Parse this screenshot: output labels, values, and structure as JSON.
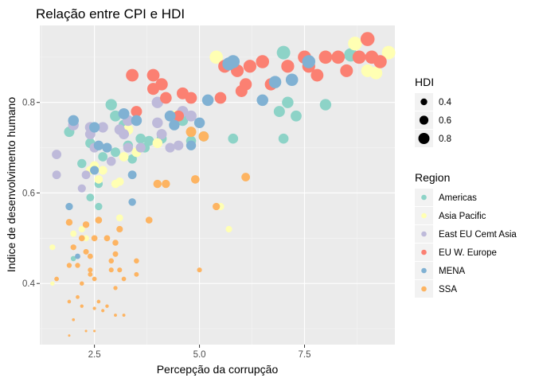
{
  "chart_data": {
    "type": "scatter",
    "title": "Relação entre CPI e HDI",
    "xlabel": "Percepção da corrupção",
    "ylabel": "Indice de desenvolvimento humano",
    "xlim": [
      1.2,
      9.65
    ],
    "ylim": [
      0.265,
      0.97
    ],
    "xticks": [
      2.5,
      5.0,
      7.5
    ],
    "xtick_labels": [
      "2.5",
      "5.0",
      "7.5"
    ],
    "yticks": [
      0.4,
      0.6,
      0.8
    ],
    "ytick_labels": [
      "0.4",
      "0.6",
      "0.8"
    ],
    "grid": true,
    "legend_position": "right",
    "size_legend": {
      "title": "HDI",
      "values": [
        0.4,
        0.6,
        0.8
      ],
      "labels": [
        "0.4",
        "0.6",
        "0.8"
      ]
    },
    "color_legend": {
      "title": "Region",
      "entries": [
        {
          "name": "Americas",
          "color": "#8DD3C7"
        },
        {
          "name": "Asia Pacific",
          "color": "#FFFFB3"
        },
        {
          "name": "East EU Cemt Asia",
          "color": "#BEBADA"
        },
        {
          "name": "EU W. Europe",
          "color": "#FB8072"
        },
        {
          "name": "MENA",
          "color": "#80B1D3"
        },
        {
          "name": "SSA",
          "color": "#FDB462"
        }
      ]
    },
    "series": [
      {
        "name": "Americas",
        "color": "#8DD3C7",
        "points": [
          [
            1.9,
            0.735
          ],
          [
            2.2,
            0.665
          ],
          [
            2.4,
            0.71
          ],
          [
            2.4,
            0.59
          ],
          [
            2.6,
            0.57
          ],
          [
            2.9,
            0.795
          ],
          [
            3.0,
            0.69
          ],
          [
            3.0,
            0.77
          ],
          [
            3.2,
            0.75
          ],
          [
            3.3,
            0.705
          ],
          [
            3.4,
            0.675
          ],
          [
            3.6,
            0.72
          ],
          [
            2.0,
            0.455
          ],
          [
            2.6,
            0.62
          ],
          [
            2.7,
            0.68
          ],
          [
            3.8,
            0.715
          ],
          [
            4.1,
            0.72
          ],
          [
            4.6,
            0.76
          ],
          [
            4.8,
            0.715
          ],
          [
            5.1,
            0.725
          ],
          [
            5.8,
            0.72
          ],
          [
            6.9,
            0.78
          ],
          [
            7.0,
            0.72
          ],
          [
            7.0,
            0.91
          ],
          [
            7.1,
            0.8
          ],
          [
            7.3,
            0.77
          ],
          [
            8.0,
            0.795
          ],
          [
            8.6,
            0.905
          ],
          [
            3.7,
            0.7
          ]
        ]
      },
      {
        "name": "Asia Pacific",
        "color": "#FFFFB3",
        "points": [
          [
            1.5,
            0.48
          ],
          [
            1.5,
            0.4
          ],
          [
            2.0,
            0.51
          ],
          [
            2.2,
            0.52
          ],
          [
            2.3,
            0.5
          ],
          [
            2.4,
            0.65
          ],
          [
            2.5,
            0.66
          ],
          [
            2.6,
            0.63
          ],
          [
            2.7,
            0.65
          ],
          [
            3.0,
            0.62
          ],
          [
            3.1,
            0.545
          ],
          [
            3.1,
            0.625
          ],
          [
            3.2,
            0.68
          ],
          [
            3.5,
            0.69
          ],
          [
            3.3,
            0.74
          ],
          [
            4.0,
            0.71
          ],
          [
            4.4,
            0.77
          ],
          [
            5.4,
            0.9
          ],
          [
            5.5,
            0.57
          ],
          [
            5.7,
            0.52
          ],
          [
            8.0,
            0.9
          ],
          [
            8.7,
            0.93
          ],
          [
            9.0,
            0.87
          ],
          [
            9.2,
            0.865
          ],
          [
            9.5,
            0.91
          ]
        ]
      },
      {
        "name": "East EU Cemt Asia",
        "color": "#BEBADA",
        "points": [
          [
            1.6,
            0.685
          ],
          [
            1.6,
            0.64
          ],
          [
            2.0,
            0.75
          ],
          [
            2.3,
            0.64
          ],
          [
            2.2,
            0.61
          ],
          [
            2.5,
            0.7
          ],
          [
            2.4,
            0.73
          ],
          [
            2.7,
            0.745
          ],
          [
            2.9,
            0.67
          ],
          [
            3.1,
            0.74
          ],
          [
            3.3,
            0.7
          ],
          [
            3.3,
            0.76
          ],
          [
            3.6,
            0.7
          ],
          [
            4.0,
            0.755
          ],
          [
            4.1,
            0.73
          ],
          [
            4.3,
            0.7
          ],
          [
            4.5,
            0.705
          ],
          [
            4.6,
            0.78
          ],
          [
            4.8,
            0.77
          ],
          [
            4.0,
            0.8
          ],
          [
            2.4,
            0.745
          ],
          [
            3.2,
            0.73
          ]
        ]
      },
      {
        "name": "EU W. Europe",
        "color": "#FB8072",
        "points": [
          [
            3.4,
            0.86
          ],
          [
            3.5,
            0.78
          ],
          [
            3.9,
            0.86
          ],
          [
            4.1,
            0.84
          ],
          [
            4.2,
            0.81
          ],
          [
            4.5,
            0.77
          ],
          [
            4.6,
            0.82
          ],
          [
            4.8,
            0.81
          ],
          [
            5.5,
            0.81
          ],
          [
            5.6,
            0.88
          ],
          [
            5.9,
            0.87
          ],
          [
            6.1,
            0.84
          ],
          [
            6.2,
            0.88
          ],
          [
            6.5,
            0.89
          ],
          [
            6.7,
            0.84
          ],
          [
            7.1,
            0.88
          ],
          [
            7.5,
            0.9
          ],
          [
            7.6,
            0.88
          ],
          [
            7.8,
            0.86
          ],
          [
            8.0,
            0.9
          ],
          [
            8.3,
            0.9
          ],
          [
            8.5,
            0.87
          ],
          [
            8.8,
            0.9
          ],
          [
            9.0,
            0.94
          ],
          [
            9.1,
            0.9
          ],
          [
            9.3,
            0.89
          ],
          [
            6.0,
            0.825
          ],
          [
            3.9,
            0.83
          ]
        ]
      },
      {
        "name": "MENA",
        "color": "#80B1D3",
        "points": [
          [
            1.9,
            0.57
          ],
          [
            2.0,
            0.76
          ],
          [
            2.1,
            0.46
          ],
          [
            2.5,
            0.745
          ],
          [
            2.6,
            0.705
          ],
          [
            2.5,
            0.65
          ],
          [
            2.8,
            0.7
          ],
          [
            3.2,
            0.775
          ],
          [
            3.4,
            0.64
          ],
          [
            3.4,
            0.58
          ],
          [
            3.5,
            0.76
          ],
          [
            4.3,
            0.77
          ],
          [
            4.4,
            0.75
          ],
          [
            4.8,
            0.705
          ],
          [
            5.0,
            0.755
          ],
          [
            5.2,
            0.805
          ],
          [
            5.8,
            0.89
          ],
          [
            6.5,
            0.805
          ],
          [
            6.8,
            0.845
          ],
          [
            7.2,
            0.85
          ],
          [
            7.6,
            0.89
          ],
          [
            5.7,
            0.885
          ]
        ]
      },
      {
        "name": "SSA",
        "color": "#FDB462",
        "points": [
          [
            1.6,
            0.41
          ],
          [
            1.9,
            0.535
          ],
          [
            1.9,
            0.44
          ],
          [
            1.9,
            0.36
          ],
          [
            2.0,
            0.48
          ],
          [
            2.0,
            0.32
          ],
          [
            2.1,
            0.44
          ],
          [
            2.1,
            0.37
          ],
          [
            2.2,
            0.5
          ],
          [
            2.2,
            0.4
          ],
          [
            2.2,
            0.35
          ],
          [
            2.3,
            0.47
          ],
          [
            2.3,
            0.53
          ],
          [
            2.3,
            0.295
          ],
          [
            2.4,
            0.46
          ],
          [
            2.4,
            0.43
          ],
          [
            2.4,
            0.42
          ],
          [
            2.5,
            0.41
          ],
          [
            2.5,
            0.345
          ],
          [
            2.5,
            0.5
          ],
          [
            2.5,
            0.295
          ],
          [
            2.6,
            0.36
          ],
          [
            2.7,
            0.34
          ],
          [
            2.8,
            0.35
          ],
          [
            2.8,
            0.5
          ],
          [
            2.9,
            0.45
          ],
          [
            2.9,
            0.43
          ],
          [
            3.0,
            0.33
          ],
          [
            3.0,
            0.39
          ],
          [
            3.0,
            0.49
          ],
          [
            3.0,
            0.465
          ],
          [
            3.1,
            0.52
          ],
          [
            3.1,
            0.43
          ],
          [
            3.2,
            0.41
          ],
          [
            3.2,
            0.33
          ],
          [
            3.5,
            0.45
          ],
          [
            3.5,
            0.42
          ],
          [
            3.8,
            0.54
          ],
          [
            4.0,
            0.62
          ],
          [
            4.2,
            0.62
          ],
          [
            4.9,
            0.63
          ],
          [
            5.0,
            0.43
          ],
          [
            5.1,
            0.725
          ],
          [
            5.4,
            0.57
          ],
          [
            6.1,
            0.635
          ],
          [
            4.8,
            0.735
          ],
          [
            2.6,
            0.54
          ],
          [
            1.9,
            0.285
          ]
        ]
      }
    ]
  }
}
